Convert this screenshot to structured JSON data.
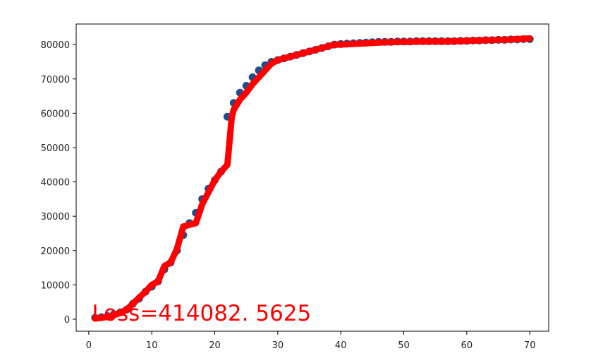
{
  "chart_data": {
    "type": "line",
    "title": "",
    "xlabel": "",
    "ylabel": "",
    "xlim": [
      -2,
      73
    ],
    "ylim": [
      -3500,
      86000
    ],
    "x_ticks": [
      0,
      10,
      20,
      30,
      40,
      50,
      60,
      70
    ],
    "x_tick_labels": [
      "0",
      "10",
      "20",
      "30",
      "40",
      "50",
      "60",
      "70"
    ],
    "y_ticks": [
      0,
      10000,
      20000,
      30000,
      40000,
      50000,
      60000,
      70000,
      80000
    ],
    "y_tick_labels": [
      "0",
      "10000",
      "20000",
      "30000",
      "40000",
      "50000",
      "60000",
      "70000",
      "80000"
    ],
    "grid": false,
    "annotation": {
      "text": "Loss=414082. 5625",
      "color": "#ff0000",
      "x": 0.5,
      "y": 0
    },
    "series": [
      {
        "style": "scatter",
        "color": "#1f4e8c",
        "x": [
          1,
          2,
          3,
          4,
          5,
          6,
          7,
          8,
          9,
          10,
          11,
          12,
          13,
          14,
          15,
          16,
          17,
          18,
          19,
          20,
          21,
          22,
          23,
          24,
          25,
          26,
          27,
          28,
          29,
          30,
          31,
          32,
          33,
          34,
          35,
          36,
          37,
          38,
          39,
          40,
          41,
          42,
          43,
          44,
          45,
          46,
          47,
          48,
          49,
          50,
          51,
          52,
          53,
          54,
          55,
          56,
          57,
          58,
          59,
          60,
          61,
          62,
          63,
          64,
          65,
          66,
          67,
          68,
          69,
          70
        ],
        "y": [
          400,
          600,
          900,
          1500,
          2000,
          2800,
          4500,
          6000,
          8000,
          9500,
          11000,
          14500,
          16500,
          20000,
          24500,
          28000,
          31000,
          35000,
          38000,
          40500,
          43000,
          59000,
          63000,
          66000,
          68000,
          70500,
          72500,
          74000,
          75000,
          75500,
          76000,
          76500,
          77000,
          77500,
          78000,
          78500,
          79000,
          79500,
          80000,
          80200,
          80300,
          80400,
          80500,
          80600,
          80700,
          80800,
          80800,
          80800,
          80900,
          80900,
          80900,
          81000,
          81000,
          81000,
          81000,
          81000,
          81000,
          81000,
          81100,
          81100,
          81200,
          81200,
          81300,
          81300,
          81400,
          81400,
          81500,
          81500,
          81600,
          81600
        ]
      },
      {
        "style": "line",
        "color": "#ff0000",
        "x": [
          1,
          2,
          3,
          4,
          5,
          6,
          7,
          8,
          9,
          10,
          11,
          12,
          13,
          14,
          15,
          16,
          17,
          18,
          19,
          20,
          21,
          22,
          22.7,
          23,
          24,
          25,
          26,
          27,
          28,
          29,
          30,
          31,
          32,
          33,
          34,
          35,
          36,
          37,
          38,
          39,
          40,
          41,
          42,
          43,
          44,
          45,
          46,
          47,
          48,
          49,
          50,
          51,
          52,
          53,
          54,
          55,
          56,
          57,
          58,
          59,
          60,
          61,
          62,
          63,
          64,
          65,
          66,
          67,
          68,
          69,
          70
        ],
        "y": [
          200,
          400,
          700,
          1200,
          1800,
          2800,
          4500,
          6300,
          8000,
          10000,
          11000,
          15500,
          16500,
          20500,
          27000,
          27500,
          28000,
          33500,
          37000,
          40500,
          43000,
          45000,
          59000,
          61000,
          64000,
          66000,
          68500,
          70500,
          72500,
          74500,
          75500,
          76000,
          76500,
          77000,
          77500,
          78000,
          78500,
          79000,
          79500,
          80000,
          80000,
          80100,
          80200,
          80300,
          80400,
          80500,
          80600,
          80700,
          80700,
          80800,
          80800,
          80800,
          80900,
          80900,
          80900,
          80900,
          80900,
          80900,
          81000,
          81000,
          81100,
          81200,
          81200,
          81300,
          81300,
          81400,
          81400,
          81500,
          81600,
          81700,
          81800
        ]
      }
    ]
  }
}
